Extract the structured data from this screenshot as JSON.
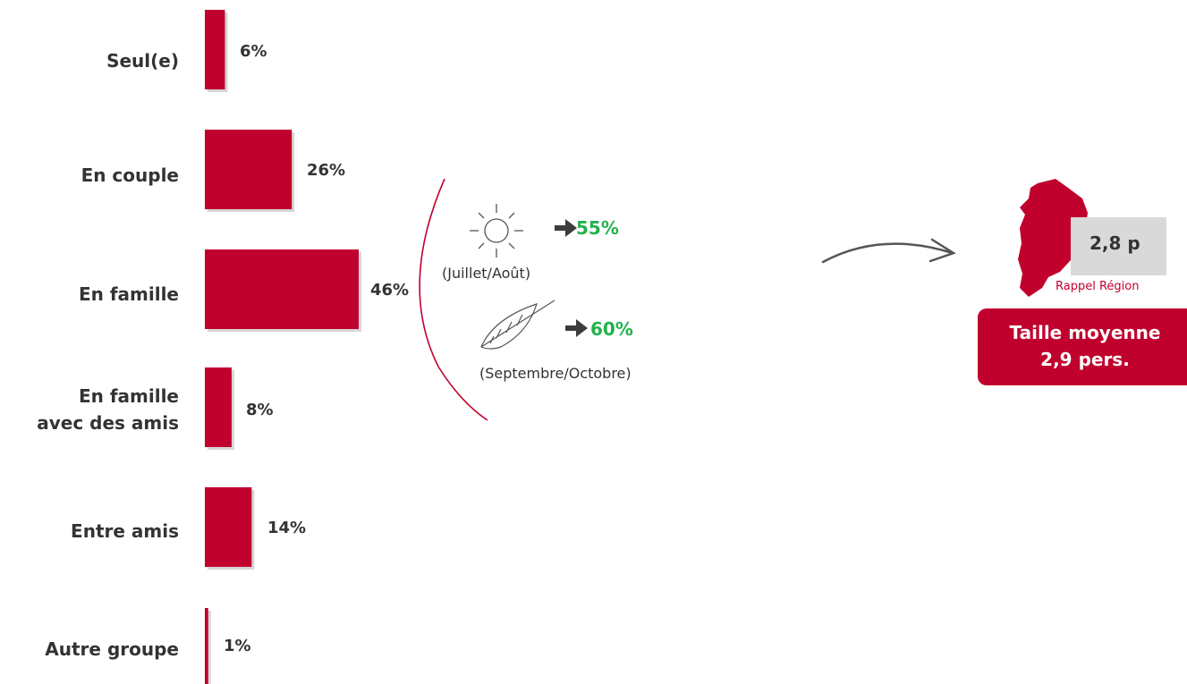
{
  "chart_data": {
    "type": "bar",
    "orientation": "horizontal",
    "categories": [
      "Seul(e)",
      "En couple",
      "En famille",
      "En famille avec des amis",
      "Entre amis",
      "Autre groupe"
    ],
    "category_lines": [
      [
        "Seul(e)"
      ],
      [
        "En couple"
      ],
      [
        "En famille"
      ],
      [
        "En famille",
        "avec des amis"
      ],
      [
        "Entre amis"
      ],
      [
        "Autre groupe"
      ]
    ],
    "values": [
      6,
      26,
      46,
      8,
      14,
      1
    ],
    "value_labels": [
      "6%",
      "26%",
      "46%",
      "8%",
      "14%",
      "1%"
    ],
    "xlim": [
      0,
      46
    ],
    "bar_color": "#c0002d"
  },
  "seasonal": {
    "summer": {
      "icon": "sun-icon",
      "value": "55%",
      "caption": "(Juillet/Août)"
    },
    "autumn": {
      "icon": "leaf-icon",
      "value": "60%",
      "caption": "(Septembre/Octobre)"
    },
    "highlight_color": "#22b14c",
    "arrow_color": "#3c3c3c"
  },
  "region": {
    "icon": "region-map-icon",
    "value": "2,8 p",
    "caption": "Rappel Région"
  },
  "average": {
    "line1": "Taille moyenne",
    "line2": "2,9 pers."
  },
  "colors": {
    "accent": "#c0002d",
    "text": "#333333",
    "grey_box": "#d9d9d9"
  }
}
